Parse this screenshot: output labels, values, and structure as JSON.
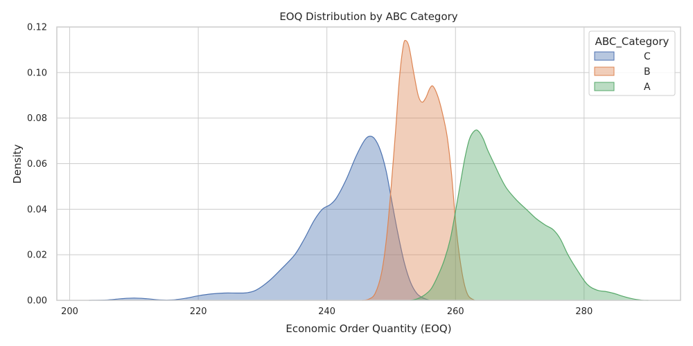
{
  "chart_data": {
    "type": "area",
    "title": "EOQ Distribution by ABC Category",
    "xlabel": "Economic Order Quantity (EOQ)",
    "ylabel": "Density",
    "xlim": [
      198,
      295
    ],
    "ylim": [
      0,
      0.12
    ],
    "x_ticks": [
      "200",
      "220",
      "240",
      "260",
      "280"
    ],
    "y_ticks": [
      "0.00",
      "0.02",
      "0.04",
      "0.06",
      "0.08",
      "0.10",
      "0.12"
    ],
    "grid": true,
    "legend": {
      "title": "ABC_Category",
      "placement": "top-right"
    },
    "series": [
      {
        "name": "C",
        "color": "#4c72b0",
        "points": [
          [
            203,
            0
          ],
          [
            206,
            0.0002
          ],
          [
            208,
            0.0007
          ],
          [
            210,
            0.001
          ],
          [
            212,
            0.0007
          ],
          [
            214,
            0.0002
          ],
          [
            216,
            0.0002
          ],
          [
            218,
            0.0009
          ],
          [
            220,
            0.002
          ],
          [
            222,
            0.0028
          ],
          [
            224,
            0.0032
          ],
          [
            226,
            0.0032
          ],
          [
            227.5,
            0.0033
          ],
          [
            229,
            0.0045
          ],
          [
            231,
            0.0085
          ],
          [
            233,
            0.014
          ],
          [
            235,
            0.02
          ],
          [
            236.5,
            0.027
          ],
          [
            238,
            0.035
          ],
          [
            239.3,
            0.04
          ],
          [
            240.5,
            0.042
          ],
          [
            241.5,
            0.045
          ],
          [
            243,
            0.053
          ],
          [
            244.5,
            0.063
          ],
          [
            245.8,
            0.07
          ],
          [
            246.6,
            0.072
          ],
          [
            247.4,
            0.071
          ],
          [
            248.3,
            0.066
          ],
          [
            249.2,
            0.057
          ],
          [
            250,
            0.045
          ],
          [
            251,
            0.03
          ],
          [
            252,
            0.017
          ],
          [
            253,
            0.008
          ],
          [
            254,
            0.003
          ],
          [
            255,
            0.001
          ],
          [
            256,
            0
          ]
        ]
      },
      {
        "name": "B",
        "color": "#dd8452",
        "points": [
          [
            245.5,
            0
          ],
          [
            246.5,
            0.0005
          ],
          [
            247.5,
            0.003
          ],
          [
            248.5,
            0.012
          ],
          [
            249.3,
            0.028
          ],
          [
            250,
            0.05
          ],
          [
            250.7,
            0.075
          ],
          [
            251.3,
            0.098
          ],
          [
            251.9,
            0.112
          ],
          [
            252.3,
            0.114
          ],
          [
            252.8,
            0.111
          ],
          [
            253.5,
            0.1
          ],
          [
            254.2,
            0.09
          ],
          [
            254.8,
            0.087
          ],
          [
            255.4,
            0.089
          ],
          [
            256,
            0.093
          ],
          [
            256.5,
            0.094
          ],
          [
            257.2,
            0.09
          ],
          [
            257.9,
            0.083
          ],
          [
            258.7,
            0.072
          ],
          [
            259.4,
            0.055
          ],
          [
            260,
            0.035
          ],
          [
            260.6,
            0.02
          ],
          [
            261.3,
            0.008
          ],
          [
            262,
            0.002
          ],
          [
            263,
            0
          ]
        ]
      },
      {
        "name": "A",
        "color": "#55a868",
        "points": [
          [
            253,
            0
          ],
          [
            254,
            0.0006
          ],
          [
            255,
            0.002
          ],
          [
            256.2,
            0.005
          ],
          [
            257.3,
            0.011
          ],
          [
            258.3,
            0.018
          ],
          [
            259.2,
            0.027
          ],
          [
            260,
            0.039
          ],
          [
            260.8,
            0.052
          ],
          [
            261.5,
            0.063
          ],
          [
            262.2,
            0.071
          ],
          [
            263,
            0.0745
          ],
          [
            263.6,
            0.0742
          ],
          [
            264.3,
            0.071
          ],
          [
            265,
            0.066
          ],
          [
            266,
            0.06
          ],
          [
            267,
            0.054
          ],
          [
            268,
            0.049
          ],
          [
            269.5,
            0.044
          ],
          [
            271,
            0.04
          ],
          [
            272.5,
            0.036
          ],
          [
            274,
            0.033
          ],
          [
            275.2,
            0.031
          ],
          [
            276.3,
            0.027
          ],
          [
            277.5,
            0.02
          ],
          [
            279,
            0.013
          ],
          [
            280.5,
            0.007
          ],
          [
            282,
            0.0045
          ],
          [
            283.5,
            0.0038
          ],
          [
            284.7,
            0.003
          ],
          [
            286,
            0.0018
          ],
          [
            287.5,
            0.0007
          ],
          [
            289,
            0.0001
          ],
          [
            290,
            0
          ]
        ]
      }
    ]
  }
}
